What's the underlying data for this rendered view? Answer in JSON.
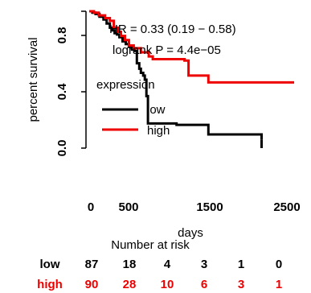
{
  "chart_data": {
    "type": "line",
    "title": "",
    "xlabel": "days",
    "ylabel": "percent survival",
    "xlim": [
      0,
      2600
    ],
    "ylim": [
      0,
      1
    ],
    "x_ticks": [
      "0",
      "500",
      "1500",
      "2500"
    ],
    "y_ticks": [
      "0.0",
      "0.4",
      "0.8"
    ],
    "annotations": [
      "HR = 0.33 (0.19 − 0.58)",
      "logrank P = 4.4e−05"
    ],
    "legend": {
      "title": "expression",
      "placement": "left-middle"
    },
    "series": [
      {
        "name": "low",
        "color": "#000000",
        "step": [
          [
            0,
            1.0
          ],
          [
            40,
            0.99
          ],
          [
            80,
            0.98
          ],
          [
            130,
            0.96
          ],
          [
            180,
            0.94
          ],
          [
            220,
            0.91
          ],
          [
            260,
            0.88
          ],
          [
            290,
            0.86
          ],
          [
            320,
            0.84
          ],
          [
            350,
            0.83
          ],
          [
            380,
            0.81
          ],
          [
            420,
            0.78
          ],
          [
            460,
            0.76
          ],
          [
            500,
            0.74
          ],
          [
            540,
            0.72
          ],
          [
            570,
            0.71
          ],
          [
            600,
            0.62
          ],
          [
            630,
            0.58
          ],
          [
            650,
            0.55
          ],
          [
            680,
            0.53
          ],
          [
            700,
            0.5
          ],
          [
            720,
            0.38
          ],
          [
            740,
            0.18
          ],
          [
            1100,
            0.17
          ],
          [
            1500,
            0.1
          ],
          [
            2170,
            0.06
          ]
        ],
        "end": 2170
      },
      {
        "name": "high",
        "color": "#ee0000",
        "step": [
          [
            0,
            1.0
          ],
          [
            60,
            0.99
          ],
          [
            120,
            0.97
          ],
          [
            200,
            0.95
          ],
          [
            260,
            0.93
          ],
          [
            310,
            0.88
          ],
          [
            360,
            0.85
          ],
          [
            400,
            0.82
          ],
          [
            450,
            0.79
          ],
          [
            500,
            0.75
          ],
          [
            560,
            0.73
          ],
          [
            650,
            0.7
          ],
          [
            750,
            0.67
          ],
          [
            800,
            0.65
          ],
          [
            1200,
            0.64
          ],
          [
            1250,
            0.53
          ],
          [
            1500,
            0.48
          ]
        ],
        "end": 2580
      }
    ]
  },
  "risk_table": {
    "title": "Number at risk",
    "rows": [
      {
        "label": "low",
        "color": "#000000",
        "values": [
          "87",
          "18",
          "4",
          "3",
          "1",
          "0"
        ]
      },
      {
        "label": "high",
        "color": "#ee0000",
        "values": [
          "90",
          "28",
          "10",
          "6",
          "3",
          "1"
        ]
      }
    ]
  }
}
